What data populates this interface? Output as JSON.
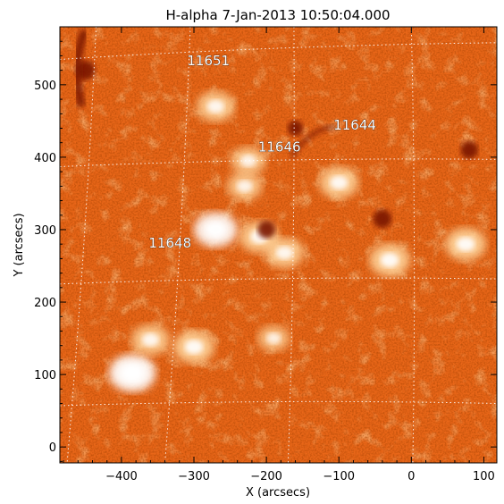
{
  "chart_data": {
    "type": "heatmap",
    "title": "H-alpha   7-Jan-2013 10:50:04.000",
    "xlabel": "X (arcsecs)",
    "ylabel": "Y (arcsecs)",
    "xlim": [
      -485,
      118
    ],
    "ylim": [
      -22,
      580
    ],
    "xticks": [
      -400,
      -300,
      -200,
      -100,
      0,
      100
    ],
    "yticks": [
      0,
      100,
      200,
      300,
      400,
      500
    ],
    "grid": "dotted heliographic grid",
    "colormap": [
      "#7a1400",
      "#c03a05",
      "#e86618",
      "#ff9a40",
      "#ffd8a0",
      "#ffffff"
    ],
    "regions": [
      {
        "label": "11651",
        "x": -280,
        "y": 527
      },
      {
        "label": "11644",
        "x": -78,
        "y": 438
      },
      {
        "label": "11646",
        "x": -182,
        "y": 408
      },
      {
        "label": "11648",
        "x": -333,
        "y": 275
      }
    ],
    "bright_features": [
      {
        "x": -385,
        "y": 102,
        "intensity": 1.0
      },
      {
        "x": -300,
        "y": 138,
        "intensity": 0.8
      },
      {
        "x": -360,
        "y": 148,
        "intensity": 0.7
      },
      {
        "x": -270,
        "y": 300,
        "intensity": 0.9
      },
      {
        "x": -210,
        "y": 290,
        "intensity": 0.75
      },
      {
        "x": -175,
        "y": 268,
        "intensity": 0.7
      },
      {
        "x": -30,
        "y": 258,
        "intensity": 0.8
      },
      {
        "x": -100,
        "y": 365,
        "intensity": 0.75
      },
      {
        "x": -270,
        "y": 470,
        "intensity": 0.7
      },
      {
        "x": -225,
        "y": 395,
        "intensity": 0.6
      },
      {
        "x": 75,
        "y": 280,
        "intensity": 0.8
      },
      {
        "x": -230,
        "y": 360,
        "intensity": 0.6
      },
      {
        "x": -190,
        "y": 150,
        "intensity": 0.5
      }
    ],
    "dark_features": [
      {
        "x": -450,
        "y": 520,
        "intensity": 1.0
      },
      {
        "x": -40,
        "y": 315,
        "intensity": 0.9
      },
      {
        "x": -200,
        "y": 300,
        "intensity": 0.8
      },
      {
        "x": 80,
        "y": 410,
        "intensity": 0.8
      },
      {
        "x": -160,
        "y": 440,
        "intensity": 0.6
      }
    ]
  }
}
